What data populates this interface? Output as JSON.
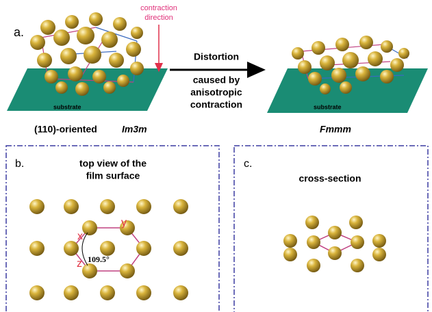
{
  "panel_a": {
    "label": "a.",
    "contraction_label": [
      "contraction",
      "direction"
    ],
    "arrow_text": [
      "Distortion",
      "caused by",
      "anisotropic",
      "contraction"
    ],
    "left_substrate": "substrate",
    "right_substrate": "substrate",
    "left_caption": "(110)-oriented",
    "left_caption_symbol": "Im3m",
    "right_caption": "Fmmm"
  },
  "panel_b": {
    "label": "b.",
    "title": [
      "top view of the",
      "film surface"
    ],
    "axis_x": "x",
    "axis_y": "y",
    "axis_z": "z",
    "angle": "109.5°"
  },
  "panel_c": {
    "label": "c.",
    "title": "cross-section"
  }
}
